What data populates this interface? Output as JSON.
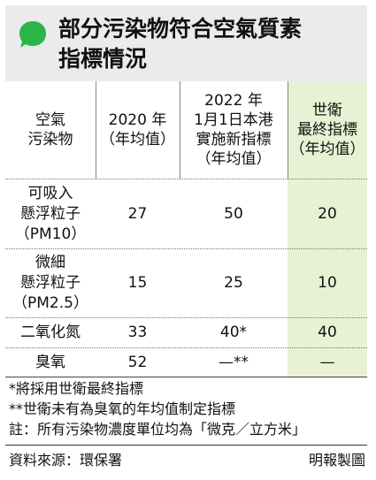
{
  "title": {
    "line1": "部分污染物符合空氣質素",
    "line2": "指標情況",
    "bubble_icon": "green-speech-bubble"
  },
  "colors": {
    "bubble": "#2bb548",
    "title_bg": "#ebebeb",
    "highlight_col": "#e8f1d4"
  },
  "table": {
    "headers": [
      [
        "空氣",
        "污染物"
      ],
      [
        "2020 年",
        "（年均值）"
      ],
      [
        "2022 年",
        "1月1日本港",
        "實施新指標",
        "（年均值）"
      ],
      [
        "世衛",
        "最終指標",
        "（年均值）"
      ]
    ],
    "rows": [
      {
        "pollutant": [
          "可吸入",
          "懸浮粒子",
          "（PM10）"
        ],
        "y2020": "27",
        "hk2022": "50",
        "who": "20"
      },
      {
        "pollutant": [
          "微細",
          "懸浮粒子",
          "（PM2.5）"
        ],
        "y2020": "15",
        "hk2022": "25",
        "who": "10"
      },
      {
        "pollutant": [
          "二氧化氮"
        ],
        "y2020": "33",
        "hk2022": "40*",
        "who": "40"
      },
      {
        "pollutant": [
          "臭氧"
        ],
        "y2020": "52",
        "hk2022": "—**",
        "who": "—"
      }
    ]
  },
  "notes": [
    "*將採用世衛最終指標",
    "**世衛未有為臭氧的年均值制定指標",
    "註：所有污染物濃度單位均為「微克／立方米」"
  ],
  "footer": {
    "source": "資料來源：環保署",
    "credit": "明報製圖"
  }
}
